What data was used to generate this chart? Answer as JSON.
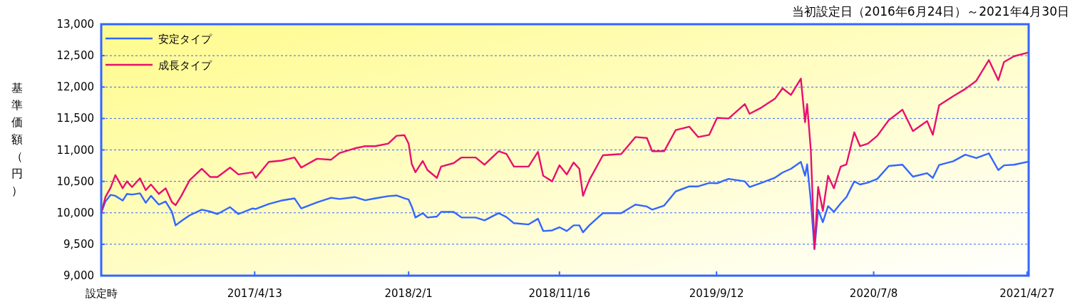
{
  "chart_data": {
    "type": "line",
    "title": "当初設定日（2016年6月24日）～2021年4月30日",
    "ylabel": "基準価額（円）",
    "x": [
      "2016-06-24",
      "2016-07-02",
      "2016-07-12",
      "2016-07-21",
      "2016-08-04",
      "2016-08-12",
      "2016-08-22",
      "2016-09-06",
      "2016-09-17",
      "2016-09-27",
      "2016-10-12",
      "2016-10-25",
      "2016-11-06",
      "2016-11-13",
      "2016-11-24",
      "2016-12-10",
      "2017-01-02",
      "2017-01-18",
      "2017-02-01",
      "2017-02-25",
      "2017-03-13",
      "2017-04-09",
      "2017-04-15",
      "2017-05-10",
      "2017-06-03",
      "2017-06-28",
      "2017-07-11",
      "2017-08-10",
      "2017-09-06",
      "2017-09-22",
      "2017-10-21",
      "2017-11-10",
      "2017-11-29",
      "2017-12-24",
      "2018-01-09",
      "2018-01-24",
      "2018-02-01",
      "2018-02-07",
      "2018-02-14",
      "2018-02-28",
      "2018-03-09",
      "2018-03-27",
      "2018-04-04",
      "2018-04-28",
      "2018-05-13",
      "2018-06-09",
      "2018-06-26",
      "2018-07-23",
      "2018-08-07",
      "2018-08-21",
      "2018-09-18",
      "2018-10-06",
      "2018-10-16",
      "2018-11-02",
      "2018-11-16",
      "2018-11-30",
      "2018-12-13",
      "2018-12-24",
      "2018-12-31",
      "2019-01-12",
      "2019-02-07",
      "2019-03-14",
      "2019-04-10",
      "2019-05-02",
      "2019-05-12",
      "2019-06-04",
      "2019-06-26",
      "2019-07-22",
      "2019-08-08",
      "2019-08-29",
      "2019-09-13",
      "2019-10-05",
      "2019-11-05",
      "2019-11-14",
      "2019-12-06",
      "2020-01-02",
      "2020-01-16",
      "2020-02-01",
      "2020-02-20",
      "2020-02-28",
      "2020-03-03",
      "2020-03-10",
      "2020-03-17",
      "2020-03-24",
      "2020-04-02",
      "2020-04-12",
      "2020-04-23",
      "2020-05-06",
      "2020-05-17",
      "2020-06-01",
      "2020-06-12",
      "2020-06-27",
      "2020-07-15",
      "2020-08-06",
      "2020-09-01",
      "2020-09-21",
      "2020-10-18",
      "2020-10-29",
      "2020-11-10",
      "2020-12-07",
      "2020-12-30",
      "2021-01-20",
      "2021-02-13",
      "2021-03-03",
      "2021-03-14",
      "2021-04-02",
      "2021-04-30"
    ],
    "series": [
      {
        "name": "安定タイプ",
        "color": "#3366ff",
        "values": [
          10000,
          10180,
          10285,
          10270,
          10195,
          10300,
          10290,
          10310,
          10160,
          10270,
          10130,
          10180,
          10015,
          9800,
          9870,
          9960,
          10050,
          10020,
          9980,
          10090,
          9980,
          10070,
          10060,
          10140,
          10195,
          10230,
          10070,
          10165,
          10240,
          10220,
          10250,
          10200,
          10230,
          10265,
          10275,
          10230,
          10210,
          10100,
          9925,
          9995,
          9925,
          9940,
          10015,
          10015,
          9925,
          9925,
          9880,
          9995,
          9930,
          9835,
          9815,
          9905,
          9710,
          9720,
          9770,
          9710,
          9800,
          9800,
          9690,
          9800,
          9995,
          9995,
          10130,
          10100,
          10050,
          10115,
          10340,
          10420,
          10420,
          10475,
          10470,
          10540,
          10500,
          10410,
          10475,
          10560,
          10640,
          10700,
          10810,
          10590,
          10770,
          10195,
          9420,
          10050,
          9850,
          10105,
          10015,
          10150,
          10250,
          10500,
          10450,
          10480,
          10540,
          10745,
          10765,
          10575,
          10630,
          10555,
          10760,
          10820,
          10925,
          10870,
          10945,
          10680,
          10755,
          10765,
          10815
        ]
      },
      {
        "name": "成長タイプ",
        "color": "#e8106e",
        "values": [
          10000,
          10250,
          10400,
          10600,
          10390,
          10500,
          10410,
          10550,
          10360,
          10450,
          10300,
          10390,
          10170,
          10120,
          10270,
          10520,
          10700,
          10570,
          10570,
          10720,
          10610,
          10645,
          10555,
          10810,
          10830,
          10880,
          10720,
          10860,
          10845,
          10950,
          11025,
          11060,
          11060,
          11100,
          11225,
          11235,
          11100,
          10775,
          10645,
          10825,
          10680,
          10555,
          10735,
          10790,
          10880,
          10880,
          10765,
          10980,
          10935,
          10735,
          10735,
          10970,
          10590,
          10500,
          10755,
          10610,
          10800,
          10700,
          10270,
          10520,
          10915,
          10935,
          11205,
          11190,
          10980,
          10980,
          11315,
          11370,
          11205,
          11240,
          11510,
          11500,
          11730,
          11575,
          11670,
          11820,
          11980,
          11875,
          12135,
          11440,
          11730,
          11000,
          9435,
          10410,
          10030,
          10590,
          10390,
          10735,
          10770,
          11280,
          11060,
          11100,
          11225,
          11475,
          11640,
          11300,
          11460,
          11240,
          11710,
          11855,
          11970,
          12100,
          12430,
          12110,
          12400,
          12490,
          12550
        ]
      }
    ],
    "xlim": [
      "2016-06-24",
      "2021-04-30"
    ],
    "xticks": [
      {
        "value": "2016-06-24",
        "label": "設定時"
      },
      {
        "value": "2017-04-13",
        "label": "2017/4/13"
      },
      {
        "value": "2018-02-01",
        "label": "2018/2/1"
      },
      {
        "value": "2018-11-16",
        "label": "2018/11/16"
      },
      {
        "value": "2019-09-12",
        "label": "2019/9/12"
      },
      {
        "value": "2020-07-08",
        "label": "2020/7/8"
      },
      {
        "value": "2021-04-27",
        "label": "2021/4/27"
      }
    ],
    "ylim": [
      9000,
      13000
    ],
    "yticks": [
      {
        "value": 9000,
        "label": "9,000"
      },
      {
        "value": 9500,
        "label": "9,500"
      },
      {
        "value": 10000,
        "label": "10,000"
      },
      {
        "value": 10500,
        "label": "10,500"
      },
      {
        "value": 11000,
        "label": "11,000"
      },
      {
        "value": 11500,
        "label": "11,500"
      },
      {
        "value": 12000,
        "label": "12,000"
      },
      {
        "value": 12500,
        "label": "12,500"
      },
      {
        "value": 13000,
        "label": "13,000"
      }
    ],
    "grid": "y",
    "legend": "top left",
    "marker": "none",
    "line_style": "solid"
  }
}
